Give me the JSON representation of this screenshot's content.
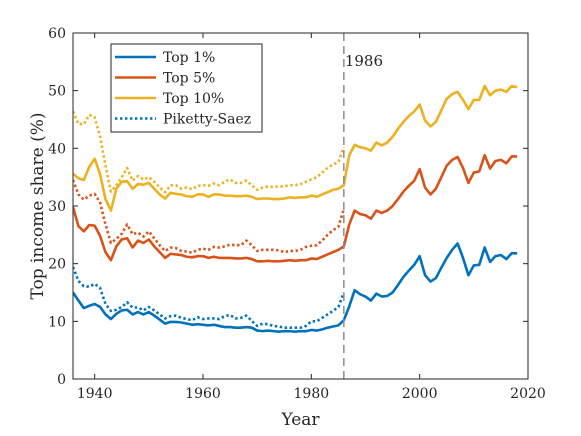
{
  "chart_data": {
    "type": "line",
    "xlabel": "Year",
    "ylabel": "Top income share (%)",
    "xlim": [
      1936,
      2020
    ],
    "ylim": [
      0,
      60
    ],
    "xticks": [
      1940,
      1960,
      1980,
      2000,
      2020
    ],
    "yticks": [
      0,
      10,
      20,
      30,
      40,
      50,
      60
    ],
    "grid": false,
    "legend_position": "top-left",
    "annotation": {
      "text": "1986",
      "x": 1986
    },
    "series": [
      {
        "name": "Top 1%",
        "color": "#0072BD",
        "style": "solid",
        "x": [
          1936,
          1937,
          1938,
          1939,
          1940,
          1941,
          1942,
          1943,
          1944,
          1945,
          1946,
          1947,
          1948,
          1949,
          1950,
          1951,
          1952,
          1953,
          1954,
          1955,
          1956,
          1957,
          1958,
          1959,
          1960,
          1961,
          1962,
          1963,
          1964,
          1965,
          1966,
          1967,
          1968,
          1969,
          1970,
          1971,
          1972,
          1973,
          1974,
          1975,
          1976,
          1977,
          1978,
          1979,
          1980,
          1981,
          1982,
          1983,
          1984,
          1985,
          1986,
          1987,
          1988,
          1989,
          1990,
          1991,
          1992,
          1993,
          1994,
          1995,
          1996,
          1997,
          1998,
          1999,
          2000,
          2001,
          2002,
          2003,
          2004,
          2005,
          2006,
          2007,
          2008,
          2009,
          2010,
          2011,
          2012,
          2013,
          2014,
          2015,
          2016,
          2017,
          2018
        ],
        "y": [
          15.0,
          13.6,
          12.3,
          12.7,
          13.0,
          12.5,
          11.2,
          10.4,
          11.3,
          11.9,
          12.0,
          11.2,
          11.6,
          11.2,
          11.6,
          11.0,
          10.3,
          9.6,
          9.9,
          9.9,
          9.8,
          9.6,
          9.4,
          9.5,
          9.4,
          9.3,
          9.4,
          9.2,
          9.0,
          9.0,
          8.9,
          8.9,
          9.0,
          8.9,
          8.4,
          8.3,
          8.4,
          8.3,
          8.2,
          8.3,
          8.3,
          8.2,
          8.3,
          8.3,
          8.5,
          8.4,
          8.6,
          8.9,
          9.1,
          9.3,
          10.2,
          12.6,
          15.4,
          14.7,
          14.3,
          13.6,
          14.8,
          14.3,
          14.4,
          15.0,
          16.3,
          17.7,
          18.8,
          19.8,
          21.3,
          18.0,
          16.9,
          17.5,
          19.3,
          21.0,
          22.4,
          23.5,
          21.0,
          18.0,
          19.7,
          19.8,
          22.8,
          20.3,
          21.3,
          21.5,
          20.8,
          21.8,
          21.8
        ]
      },
      {
        "name": "Top 5%",
        "color": "#D95319",
        "style": "solid",
        "x": [
          1936,
          1937,
          1938,
          1939,
          1940,
          1941,
          1942,
          1943,
          1944,
          1945,
          1946,
          1947,
          1948,
          1949,
          1950,
          1951,
          1952,
          1953,
          1954,
          1955,
          1956,
          1957,
          1958,
          1959,
          1960,
          1961,
          1962,
          1963,
          1964,
          1965,
          1966,
          1967,
          1968,
          1969,
          1970,
          1971,
          1972,
          1973,
          1974,
          1975,
          1976,
          1977,
          1978,
          1979,
          1980,
          1981,
          1982,
          1983,
          1984,
          1985,
          1986,
          1987,
          1988,
          1989,
          1990,
          1991,
          1992,
          1993,
          1994,
          1995,
          1996,
          1997,
          1998,
          1999,
          2000,
          2001,
          2002,
          2003,
          2004,
          2005,
          2006,
          2007,
          2008,
          2009,
          2010,
          2011,
          2012,
          2013,
          2014,
          2015,
          2016,
          2017,
          2018
        ],
        "y": [
          29.8,
          26.5,
          25.6,
          26.7,
          26.6,
          24.8,
          22.0,
          20.6,
          23.0,
          24.2,
          24.4,
          22.8,
          24.0,
          23.6,
          24.2,
          23.0,
          22.0,
          21.0,
          21.7,
          21.6,
          21.5,
          21.2,
          21.1,
          21.3,
          21.3,
          21.0,
          21.2,
          21.0,
          21.0,
          21.0,
          20.9,
          20.9,
          21.0,
          20.8,
          20.4,
          20.4,
          20.5,
          20.4,
          20.4,
          20.5,
          20.6,
          20.5,
          20.6,
          20.6,
          20.9,
          20.8,
          21.2,
          21.6,
          22.0,
          22.4,
          23.0,
          26.8,
          29.2,
          28.6,
          28.4,
          27.8,
          29.2,
          28.8,
          29.2,
          30.0,
          31.2,
          32.5,
          33.5,
          34.4,
          36.4,
          33.2,
          32.0,
          33.0,
          35.0,
          37.0,
          38.0,
          38.5,
          36.6,
          34.0,
          35.8,
          36.0,
          38.8,
          36.5,
          37.8,
          38.0,
          37.4,
          38.6,
          38.6
        ]
      },
      {
        "name": "Top 10%",
        "color": "#EDB120",
        "style": "solid",
        "x": [
          1936,
          1937,
          1938,
          1939,
          1940,
          1941,
          1942,
          1943,
          1944,
          1945,
          1946,
          1947,
          1948,
          1949,
          1950,
          1951,
          1952,
          1953,
          1954,
          1955,
          1956,
          1957,
          1958,
          1959,
          1960,
          1961,
          1962,
          1963,
          1964,
          1965,
          1966,
          1967,
          1968,
          1969,
          1970,
          1971,
          1972,
          1973,
          1974,
          1975,
          1976,
          1977,
          1978,
          1979,
          1980,
          1981,
          1982,
          1983,
          1984,
          1985,
          1986,
          1987,
          1988,
          1989,
          1990,
          1991,
          1992,
          1993,
          1994,
          1995,
          1996,
          1997,
          1998,
          1999,
          2000,
          2001,
          2002,
          2003,
          2004,
          2005,
          2006,
          2007,
          2008,
          2009,
          2010,
          2011,
          2012,
          2013,
          2014,
          2015,
          2016,
          2017,
          2018
        ],
        "y": [
          35.6,
          34.8,
          34.5,
          36.8,
          38.2,
          35.5,
          31.2,
          29.2,
          33.0,
          34.2,
          34.3,
          33.0,
          33.8,
          33.7,
          34.0,
          33.0,
          32.0,
          31.3,
          32.3,
          32.1,
          32.0,
          31.7,
          31.6,
          32.0,
          32.0,
          31.6,
          32.0,
          32.0,
          31.8,
          31.8,
          31.7,
          31.7,
          31.8,
          31.6,
          31.2,
          31.3,
          31.3,
          31.2,
          31.2,
          31.3,
          31.5,
          31.4,
          31.5,
          31.5,
          31.8,
          31.6,
          32.0,
          32.4,
          32.8,
          33.0,
          33.6,
          38.8,
          40.6,
          40.2,
          40.0,
          39.6,
          41.0,
          40.5,
          41.0,
          42.0,
          43.4,
          44.6,
          45.6,
          46.4,
          47.6,
          44.8,
          43.8,
          44.6,
          46.6,
          48.6,
          49.4,
          49.8,
          48.4,
          46.8,
          48.4,
          48.4,
          50.8,
          49.2,
          50.0,
          50.2,
          49.8,
          50.8,
          50.6
        ]
      },
      {
        "name": "Piketty-Saez",
        "color": "#0072BD",
        "style": "dotted",
        "x": [
          1936,
          1937,
          1938,
          1939,
          1940,
          1941,
          1942,
          1943,
          1944,
          1945,
          1946,
          1947,
          1948,
          1949,
          1950,
          1951,
          1952,
          1953,
          1954,
          1955,
          1956,
          1957,
          1958,
          1959,
          1960,
          1961,
          1962,
          1963,
          1964,
          1965,
          1966,
          1967,
          1968,
          1969,
          1970,
          1971,
          1972,
          1973,
          1974,
          1975,
          1976,
          1977,
          1978,
          1979,
          1980,
          1981,
          1982,
          1983,
          1984,
          1985,
          1986
        ],
        "y": [
          19.4,
          17.0,
          16.1,
          16.0,
          16.5,
          15.8,
          13.0,
          11.8,
          12.0,
          12.5,
          13.3,
          12.4,
          12.4,
          11.9,
          12.5,
          11.9,
          11.2,
          10.5,
          10.9,
          11.0,
          10.6,
          10.4,
          10.2,
          10.7,
          10.4,
          10.5,
          10.5,
          10.4,
          10.9,
          11.1,
          10.5,
          10.6,
          11.0,
          10.1,
          9.2,
          9.6,
          9.5,
          9.2,
          9.1,
          8.9,
          8.9,
          8.9,
          8.9,
          9.2,
          10.0,
          10.0,
          10.6,
          11.2,
          11.8,
          12.5,
          15.0
        ]
      },
      {
        "name": "",
        "color": "#D95319",
        "style": "dotted",
        "x": [
          1936,
          1937,
          1938,
          1939,
          1940,
          1941,
          1942,
          1943,
          1944,
          1945,
          1946,
          1947,
          1948,
          1949,
          1950,
          1951,
          1952,
          1953,
          1954,
          1955,
          1956,
          1957,
          1958,
          1959,
          1960,
          1961,
          1962,
          1963,
          1964,
          1965,
          1966,
          1967,
          1968,
          1969,
          1970,
          1971,
          1972,
          1973,
          1974,
          1975,
          1976,
          1977,
          1978,
          1979,
          1980,
          1981,
          1982,
          1983,
          1984,
          1985,
          1986
        ],
        "y": [
          34.5,
          32.0,
          31.1,
          31.8,
          32.1,
          30.6,
          26.8,
          23.6,
          24.3,
          25.2,
          26.8,
          25.1,
          25.4,
          24.7,
          25.6,
          24.4,
          23.2,
          22.2,
          22.8,
          22.7,
          22.2,
          22.1,
          21.9,
          22.4,
          22.6,
          22.4,
          22.9,
          22.8,
          23.0,
          23.3,
          23.2,
          23.2,
          24.0,
          23.2,
          22.2,
          22.4,
          22.4,
          22.4,
          22.3,
          22.0,
          22.2,
          22.2,
          22.4,
          22.9,
          23.1,
          23.2,
          24.0,
          25.0,
          25.8,
          26.4,
          29.5
        ]
      },
      {
        "name": "",
        "color": "#EDB120",
        "style": "dotted",
        "x": [
          1936,
          1937,
          1938,
          1939,
          1940,
          1941,
          1942,
          1943,
          1944,
          1945,
          1946,
          1947,
          1948,
          1949,
          1950,
          1951,
          1952,
          1953,
          1954,
          1955,
          1956,
          1957,
          1958,
          1959,
          1960,
          1961,
          1962,
          1963,
          1964,
          1965,
          1966,
          1967,
          1968,
          1969,
          1970,
          1971,
          1972,
          1973,
          1974,
          1975,
          1976,
          1977,
          1978,
          1979,
          1980,
          1981,
          1982,
          1983,
          1984,
          1985,
          1986
        ],
        "y": [
          46.4,
          44.2,
          44.2,
          45.8,
          45.4,
          42.0,
          37.0,
          32.5,
          33.6,
          35.0,
          36.6,
          34.4,
          35.2,
          34.6,
          35.0,
          34.2,
          33.2,
          32.4,
          33.6,
          33.6,
          33.0,
          33.2,
          32.9,
          33.5,
          33.6,
          33.5,
          33.9,
          33.6,
          34.2,
          34.6,
          34.0,
          34.0,
          34.4,
          33.6,
          32.8,
          33.2,
          33.4,
          33.3,
          33.4,
          33.4,
          33.6,
          33.6,
          33.8,
          34.2,
          34.6,
          35.0,
          35.8,
          36.6,
          37.2,
          37.6,
          40.2
        ]
      }
    ]
  }
}
